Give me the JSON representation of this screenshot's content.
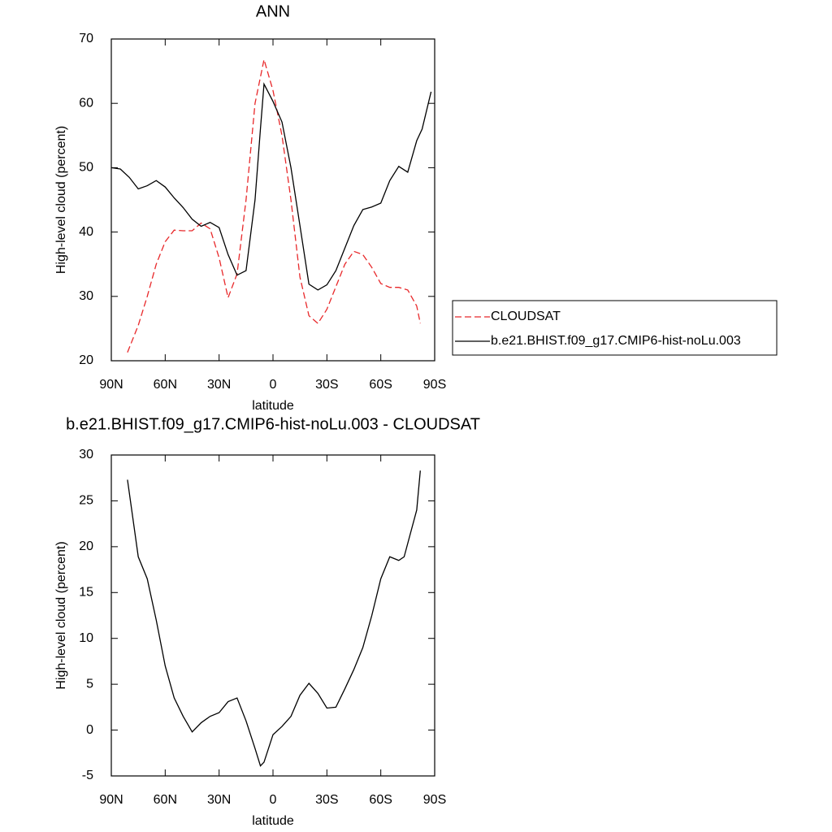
{
  "chart_data": [
    {
      "type": "line",
      "title": "ANN",
      "xlabel": "latitude",
      "ylabel": "High-level cloud (percent)",
      "xlim": [
        90,
        -90
      ],
      "ylim": [
        20,
        70
      ],
      "xticks": [
        {
          "value": 90,
          "label": "90N"
        },
        {
          "value": 60,
          "label": "60N"
        },
        {
          "value": 30,
          "label": "30N"
        },
        0,
        {
          "value": -30,
          "label": "30S"
        },
        {
          "value": -60,
          "label": "60S"
        },
        {
          "value": -90,
          "label": "90S"
        }
      ],
      "yticks": [
        20,
        30,
        40,
        50,
        60,
        70
      ],
      "series": [
        {
          "name": "CLOUDSAT",
          "color": "#e8282a",
          "dash": true,
          "x": [
            81,
            75,
            70,
            65,
            60,
            55,
            50,
            45,
            40,
            35,
            30,
            25,
            20,
            15,
            10,
            5,
            0,
            -5,
            -10,
            -15,
            -20,
            -25,
            -30,
            -35,
            -40,
            -45,
            -50,
            -55,
            -60,
            -65,
            -70,
            -75,
            -80,
            -82
          ],
          "values": [
            21.3,
            25.5,
            30,
            35,
            38.5,
            40.3,
            40.2,
            40.2,
            41.4,
            40.5,
            36,
            29.8,
            33.5,
            45,
            60,
            66.8,
            62,
            55,
            45,
            33,
            27,
            25.8,
            28,
            31.5,
            35,
            37,
            36.5,
            34.5,
            32,
            31.4,
            31.4,
            31,
            28.5,
            25.8
          ]
        },
        {
          "name": "b.e21.BHIST.f09_g17.CMIP6-hist-noLu.003",
          "color": "#000000",
          "dash": false,
          "x": [
            90,
            85,
            80,
            75,
            70,
            65,
            60,
            55,
            50,
            45,
            40,
            35,
            30,
            25,
            20,
            15,
            10,
            7,
            5,
            0,
            -5,
            -10,
            -15,
            -20,
            -25,
            -30,
            -35,
            -40,
            -45,
            -50,
            -55,
            -60,
            -65,
            -70,
            -75,
            -80,
            -83,
            -88
          ],
          "values": [
            50,
            49.8,
            48.5,
            46.7,
            47.2,
            48,
            47,
            45.3,
            43.8,
            42,
            40.9,
            41.5,
            40.7,
            36.5,
            33.3,
            34,
            45,
            56,
            63,
            60.3,
            57.1,
            50,
            41,
            31.9,
            31,
            31.8,
            34,
            37.5,
            41,
            43.5,
            43.9,
            44.5,
            48,
            50.2,
            49.3,
            54.2,
            56,
            61.8
          ]
        }
      ]
    },
    {
      "type": "line",
      "title": "b.e21.BHIST.f09_g17.CMIP6-hist-noLu.003 - CLOUDSAT",
      "xlabel": "latitude",
      "ylabel": "High-level cloud (percent)",
      "xlim": [
        90,
        -90
      ],
      "ylim": [
        -5,
        30
      ],
      "xticks": [
        {
          "value": 90,
          "label": "90N"
        },
        {
          "value": 60,
          "label": "60N"
        },
        {
          "value": 30,
          "label": "30N"
        },
        0,
        {
          "value": -30,
          "label": "30S"
        },
        {
          "value": -60,
          "label": "60S"
        },
        {
          "value": -90,
          "label": "90S"
        }
      ],
      "yticks": [
        -5,
        0,
        5,
        10,
        15,
        20,
        25,
        30
      ],
      "series": [
        {
          "color": "#000000",
          "dash": false,
          "x": [
            81,
            75,
            70,
            65,
            60,
            55,
            50,
            45,
            40,
            35,
            30,
            25,
            20,
            15,
            10,
            7,
            5,
            0,
            -5,
            -10,
            -15,
            -20,
            -25,
            -30,
            -35,
            -40,
            -45,
            -50,
            -55,
            -60,
            -65,
            -70,
            -73,
            -80,
            -82
          ],
          "values": [
            27.3,
            18.9,
            16.5,
            12,
            7,
            3.5,
            1.5,
            -0.2,
            0.8,
            1.5,
            1.9,
            3.1,
            3.5,
            1,
            -2,
            -3.9,
            -3.5,
            -0.5,
            0.4,
            1.5,
            3.8,
            5.1,
            4,
            2.4,
            2.5,
            4.5,
            6.6,
            9,
            12.5,
            16.5,
            18.9,
            18.5,
            18.9,
            24,
            28.3
          ]
        }
      ]
    }
  ]
}
